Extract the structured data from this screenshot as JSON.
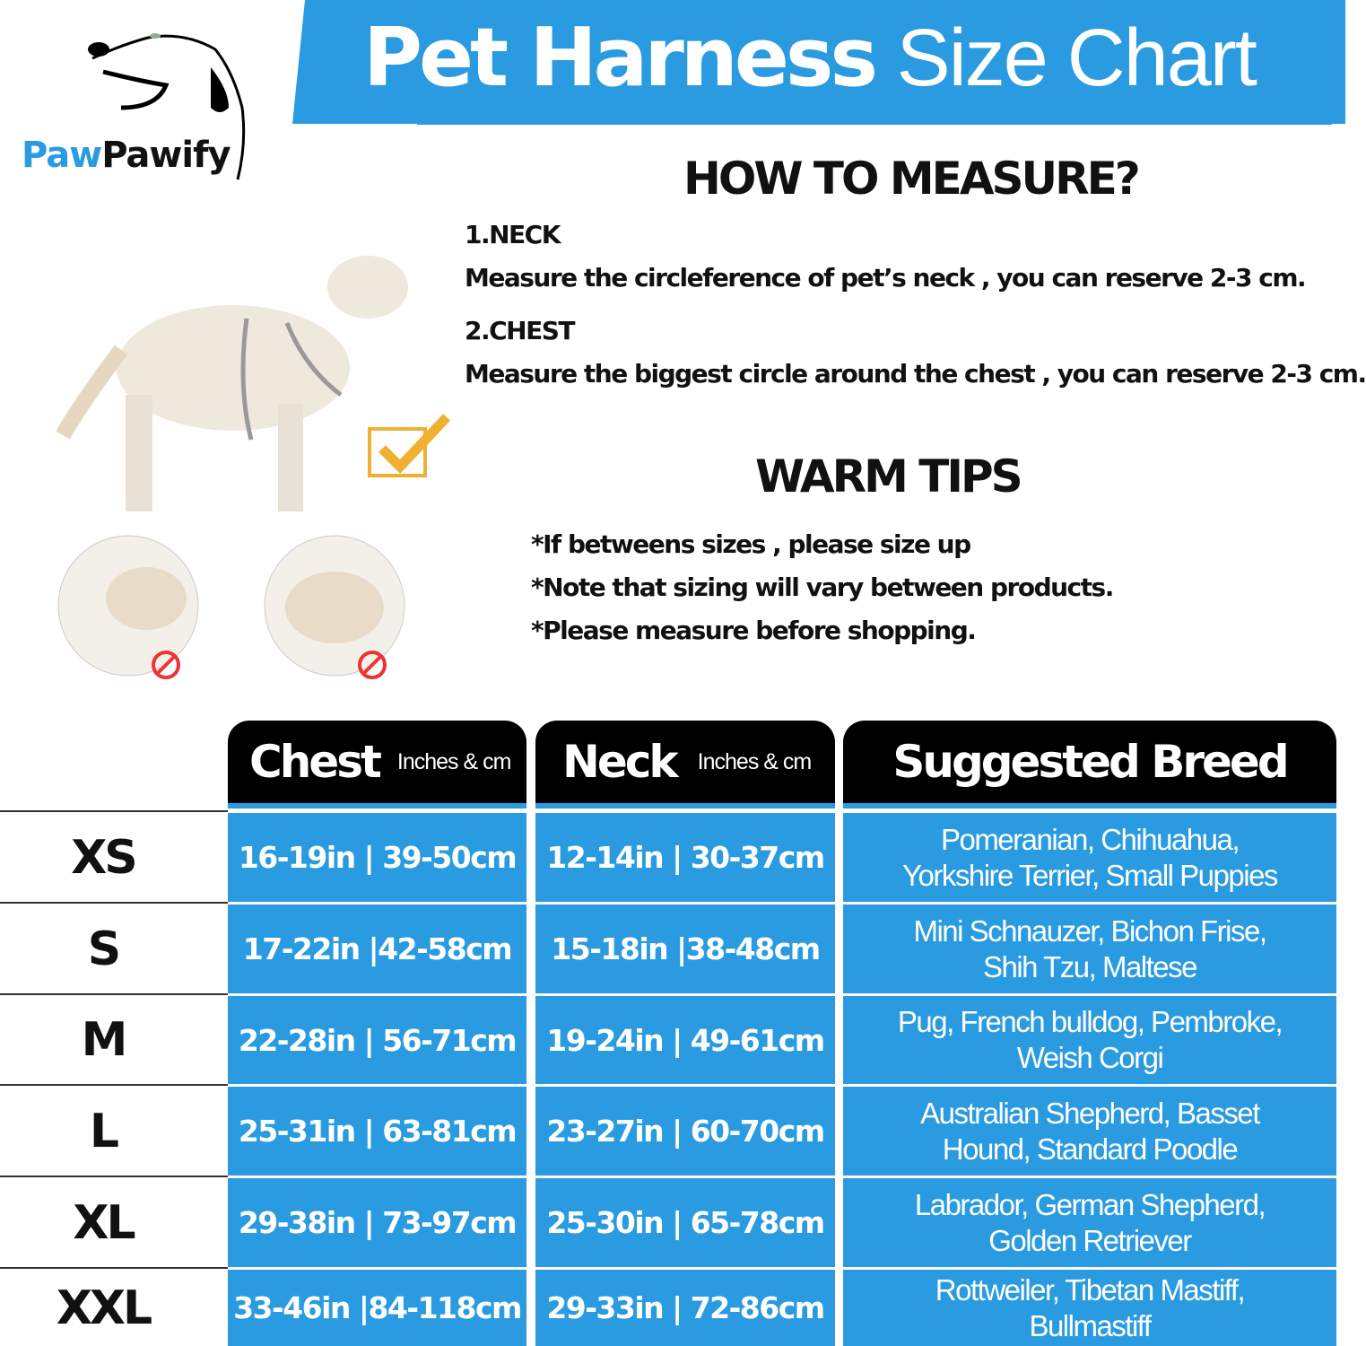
{
  "brand": {
    "part1": "Paw",
    "part2": "Pawify",
    "accent": "#2a9be0"
  },
  "title": {
    "bold": "Pet Harness",
    "light": "Size Chart"
  },
  "measure": {
    "heading": "HOW TO MEASURE?",
    "items": [
      {
        "label": "1.NECK",
        "text": "Measure the circleference of pet’s neck , you can reserve 2-3 cm."
      },
      {
        "label": "2.CHEST",
        "text": "Measure the biggest circle around the chest , you can reserve 2-3 cm."
      }
    ]
  },
  "tips": {
    "heading": "WARM TIPS",
    "items": [
      "*If betweens sizes , please size up",
      "*Note that sizing will vary between products.",
      "*Please measure before shopping."
    ]
  },
  "icons": [
    "dog-logo-icon",
    "check-icon",
    "prohibited-icon"
  ],
  "table": {
    "headers": [
      {
        "title": "Chest",
        "unit": "Inches & cm"
      },
      {
        "title": "Neck",
        "unit": "Inches & cm"
      },
      {
        "title": "Suggested Breed"
      }
    ],
    "rows": [
      {
        "size": "XS",
        "chest": "16-19in | 39-50cm",
        "neck": "12-14in | 30-37cm",
        "breed1": "Pomeranian,  Chihuahua,",
        "breed2": "Yorkshire Terrier,  Small Puppies"
      },
      {
        "size": "S",
        "chest": "17-22in |42-58cm",
        "neck": "15-18in |38-48cm",
        "breed1": "Mini Schnauzer,  Bichon Frise,",
        "breed2": "Shih Tzu,  Maltese"
      },
      {
        "size": "M",
        "chest": "22-28in | 56-71cm",
        "neck": "19-24in | 49-61cm",
        "breed1": "Pug,  French bulldog,  Pembroke,",
        "breed2": "Weish Corgi"
      },
      {
        "size": "L",
        "chest": "25-31in | 63-81cm",
        "neck": "23-27in | 60-70cm",
        "breed1": "Australian Shepherd,  Basset",
        "breed2": "Hound,  Standard Poodle"
      },
      {
        "size": "XL",
        "chest": "29-38in | 73-97cm",
        "neck": "25-30in | 65-78cm",
        "breed1": "Labrador,  German Shepherd,",
        "breed2": "Golden Retriever"
      },
      {
        "size": "XXL",
        "chest": "33-46in |84-118cm",
        "neck": "29-33in | 72-86cm",
        "breed1": "Rottweiler,  Tibetan Mastiff,",
        "breed2": "Bullmastiff"
      }
    ]
  }
}
